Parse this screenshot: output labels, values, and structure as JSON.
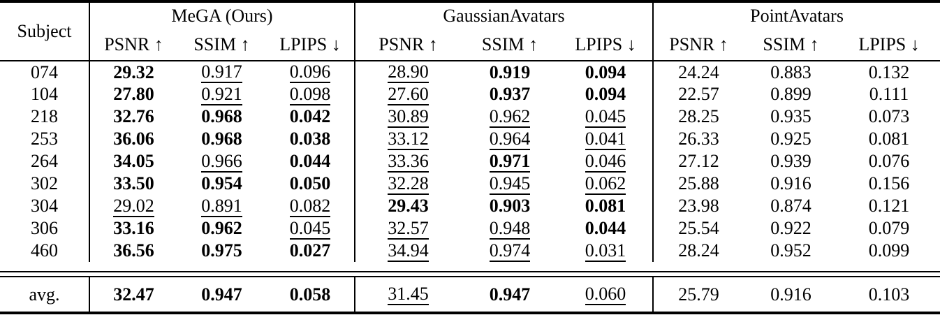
{
  "table": {
    "corner_label": "Subject",
    "arrow_up": "↑",
    "arrow_down": "↓",
    "groups": [
      {
        "label": "MeGA (Ours)"
      },
      {
        "label": "GaussianAvatars"
      },
      {
        "label": "PointAvatars"
      }
    ],
    "metrics": [
      {
        "label": "PSNR",
        "dir": "up"
      },
      {
        "label": "SSIM",
        "dir": "up"
      },
      {
        "label": "LPIPS",
        "dir": "down"
      }
    ],
    "rows": [
      {
        "subject": "074",
        "values": [
          "29.32",
          "0.917",
          "0.096",
          "28.90",
          "0.919",
          "0.094",
          "24.24",
          "0.883",
          "0.132"
        ],
        "styles": [
          "b",
          "u",
          "u",
          "u",
          "b",
          "b",
          "",
          "",
          ""
        ]
      },
      {
        "subject": "104",
        "values": [
          "27.80",
          "0.921",
          "0.098",
          "27.60",
          "0.937",
          "0.094",
          "22.57",
          "0.899",
          "0.111"
        ],
        "styles": [
          "b",
          "u",
          "u",
          "u",
          "b",
          "b",
          "",
          "",
          ""
        ]
      },
      {
        "subject": "218",
        "values": [
          "32.76",
          "0.968",
          "0.042",
          "30.89",
          "0.962",
          "0.045",
          "28.25",
          "0.935",
          "0.073"
        ],
        "styles": [
          "b",
          "b",
          "b",
          "u",
          "u",
          "u",
          "",
          "",
          ""
        ]
      },
      {
        "subject": "253",
        "values": [
          "36.06",
          "0.968",
          "0.038",
          "33.12",
          "0.964",
          "0.041",
          "26.33",
          "0.925",
          "0.081"
        ],
        "styles": [
          "b",
          "b",
          "b",
          "u",
          "u",
          "u",
          "",
          "",
          ""
        ]
      },
      {
        "subject": "264",
        "values": [
          "34.05",
          "0.966",
          "0.044",
          "33.36",
          "0.971",
          "0.046",
          "27.12",
          "0.939",
          "0.076"
        ],
        "styles": [
          "b",
          "u",
          "b",
          "u",
          "bu",
          "u",
          "",
          "",
          ""
        ]
      },
      {
        "subject": "302",
        "values": [
          "33.50",
          "0.954",
          "0.050",
          "32.28",
          "0.945",
          "0.062",
          "25.88",
          "0.916",
          "0.156"
        ],
        "styles": [
          "b",
          "b",
          "b",
          "u",
          "u",
          "u",
          "",
          "",
          ""
        ]
      },
      {
        "subject": "304",
        "values": [
          "29.02",
          "0.891",
          "0.082",
          "29.43",
          "0.903",
          "0.081",
          "23.98",
          "0.874",
          "0.121"
        ],
        "styles": [
          "u",
          "u",
          "u",
          "b",
          "b",
          "b",
          "",
          "",
          ""
        ]
      },
      {
        "subject": "306",
        "values": [
          "33.16",
          "0.962",
          "0.045",
          "32.57",
          "0.948",
          "0.044",
          "25.54",
          "0.922",
          "0.079"
        ],
        "styles": [
          "b",
          "b",
          "u",
          "u",
          "u",
          "b",
          "",
          "",
          ""
        ]
      },
      {
        "subject": "460",
        "values": [
          "36.56",
          "0.975",
          "0.027",
          "34.94",
          "0.974",
          "0.031",
          "28.24",
          "0.952",
          "0.099"
        ],
        "styles": [
          "b",
          "b",
          "b",
          "u",
          "u",
          "u",
          "",
          "",
          ""
        ]
      }
    ],
    "avg": {
      "subject": "avg.",
      "values": [
        "32.47",
        "0.947",
        "0.058",
        "31.45",
        "0.947",
        "0.060",
        "25.79",
        "0.916",
        "0.103"
      ],
      "styles": [
        "b",
        "b",
        "b",
        "u",
        "b",
        "u",
        "",
        "",
        ""
      ]
    }
  }
}
